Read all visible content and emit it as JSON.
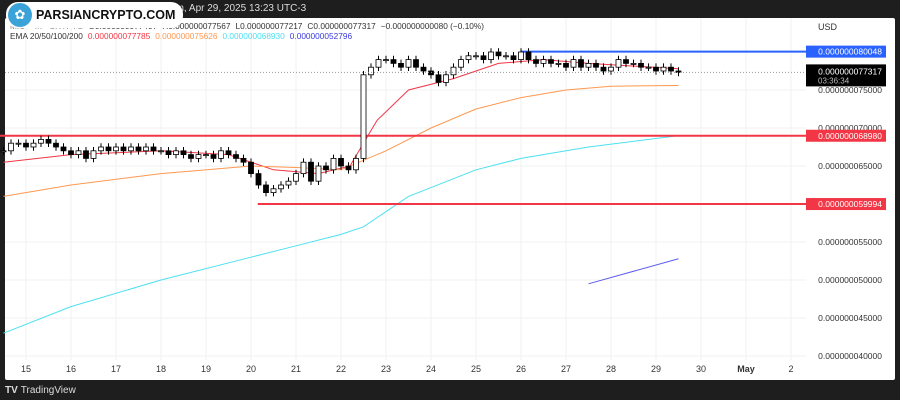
{
  "header": {
    "source_text": "ew.com, Apr 29, 2025 13:23 UTC-3",
    "watermark": "PARSIANCRYPTO.COM"
  },
  "legend": {
    "symbol": "MIU · 4h · CRYPTO",
    "open": "O0.000000077407",
    "high": "H0.000000077567",
    "low": "L0.000000077217",
    "close": "C0.000000077317",
    "change": "−0.000000000080 (−0.10%)",
    "ema_label": "EMA 20/50/100/200",
    "ema20": "0.000000077785",
    "ema50": "0.000000075626",
    "ema100": "0.000000068930",
    "ema200": "0.000000052796"
  },
  "footer": {
    "brand": "TradingView"
  },
  "chart_data": {
    "type": "candlestick",
    "currency": "USD",
    "price_unit": "1e-9 USD",
    "x_ticks": [
      "15",
      "16",
      "17",
      "18",
      "19",
      "20",
      "21",
      "22",
      "23",
      "24",
      "25",
      "26",
      "27",
      "28",
      "29",
      "30",
      "May",
      "2"
    ],
    "y_ticks": [
      "0.000000075000",
      "0.000000070000",
      "0.000000065000",
      "0.000000055000",
      "0.000000050000",
      "0.000000045000",
      "0.000000040000"
    ],
    "ylim": [
      39,
      84
    ],
    "grid": true,
    "first_candle_day": 14.5,
    "candles_per_day": 6,
    "closes": [
      67,
      68,
      68,
      67.5,
      68,
      68.5,
      68,
      67.5,
      67,
      66.5,
      67,
      66,
      67,
      67.5,
      67,
      67.5,
      67,
      67.5,
      67,
      67.5,
      67,
      67,
      66.5,
      67,
      66.5,
      66,
      66.5,
      66.5,
      66,
      67,
      66.5,
      66,
      65.5,
      64,
      62.5,
      61.5,
      62,
      62.5,
      63,
      64,
      65.5,
      63,
      65,
      64.5,
      66,
      65,
      64.5,
      66,
      77,
      78,
      79,
      79,
      78.5,
      78,
      79,
      78,
      77.5,
      77,
      76,
      77,
      78,
      79,
      79.5,
      79.5,
      79,
      80,
      79.5,
      79.5,
      79,
      80,
      79,
      78.5,
      79,
      78.5,
      78.5,
      78,
      79,
      78,
      78.5,
      78,
      77.5,
      78,
      79,
      78.5,
      78.5,
      78,
      78,
      77.5,
      78,
      77.5,
      77.317
    ],
    "levels": [
      {
        "label": "0.000000080048",
        "value": 80.048,
        "color": "#2962ff",
        "from_day": 26
      },
      {
        "label": "0.000000068980",
        "value": 68.98,
        "color": "#f23645",
        "from_day": 14.4
      },
      {
        "label": "0.000000059994",
        "value": 59.994,
        "color": "#f23645",
        "from_day": 20.15
      }
    ],
    "last_price": {
      "label": "0.000000077317",
      "value": 77.317,
      "countdown": "03:36:34"
    },
    "emas": [
      {
        "name": "EMA 20",
        "color": "#f23645",
        "points": [
          [
            14.5,
            65.5
          ],
          [
            16,
            66.5
          ],
          [
            18,
            67
          ],
          [
            19.5,
            66.5
          ],
          [
            20.5,
            64.5
          ],
          [
            21.5,
            64
          ],
          [
            22.2,
            65
          ],
          [
            22.8,
            71
          ],
          [
            23.5,
            75
          ],
          [
            24.5,
            76.5
          ],
          [
            25.5,
            78.5
          ],
          [
            26.5,
            79
          ],
          [
            27.5,
            78.5
          ],
          [
            29.5,
            77.8
          ]
        ]
      },
      {
        "name": "EMA 50",
        "color": "#ff9850",
        "points": [
          [
            14.5,
            61
          ],
          [
            16,
            62.5
          ],
          [
            18,
            64
          ],
          [
            20,
            65
          ],
          [
            21,
            64.8
          ],
          [
            22,
            64.5
          ],
          [
            23,
            67
          ],
          [
            24,
            70
          ],
          [
            25,
            72.5
          ],
          [
            26,
            74
          ],
          [
            27,
            75
          ],
          [
            28,
            75.5
          ],
          [
            29.5,
            75.6
          ]
        ]
      },
      {
        "name": "EMA 100",
        "color": "#4de0f0",
        "points": [
          [
            14.5,
            43
          ],
          [
            16,
            46.5
          ],
          [
            18,
            50
          ],
          [
            20,
            53
          ],
          [
            21,
            54.5
          ],
          [
            22,
            56
          ],
          [
            22.5,
            57
          ],
          [
            23.5,
            61
          ],
          [
            25,
            64.5
          ],
          [
            26,
            66
          ],
          [
            27.5,
            67.5
          ],
          [
            29.5,
            69
          ]
        ]
      },
      {
        "name": "EMA 200",
        "color": "#5b5bf0",
        "points": [
          [
            27.5,
            49.5
          ],
          [
            29.5,
            52.8
          ]
        ]
      }
    ]
  }
}
